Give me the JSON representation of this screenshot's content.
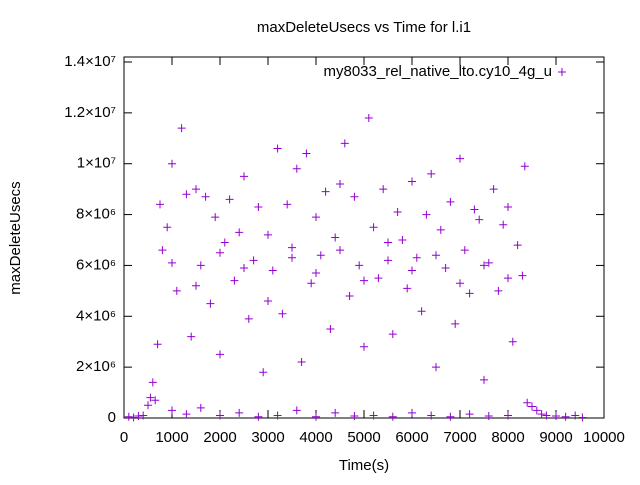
{
  "chart_data": {
    "type": "scatter",
    "title": "maxDeleteUsecs vs Time for l.i1",
    "xlabel": "Time(s)",
    "ylabel": "maxDeleteUsecs",
    "xlim": [
      0,
      10000
    ],
    "xticks": [
      0,
      1000,
      2000,
      3000,
      4000,
      5000,
      6000,
      7000,
      8000,
      9000,
      10000
    ],
    "ylim": [
      0,
      14000000
    ],
    "yticks": [
      0,
      {
        "value": 2000000,
        "label": "2×10⁶"
      },
      {
        "value": 4000000,
        "label": "4×10⁶"
      },
      {
        "value": 6000000,
        "label": "6×10⁶"
      },
      {
        "value": 8000000,
        "label": "8×10⁶"
      },
      {
        "value": 10000000,
        "label": "1×10⁷"
      },
      {
        "value": 12000000,
        "label": "1.2×10⁷"
      },
      {
        "value": 14000000,
        "label": "1.4×10⁷"
      }
    ],
    "grid": false,
    "legend": "top-right",
    "series": [
      {
        "name": "my8033_rel_native_lto.cy10_4g_u",
        "color": "#9400d3",
        "x": [
          100,
          300,
          500,
          550,
          600,
          650,
          700,
          750,
          800,
          900,
          1000,
          1100,
          1200,
          1300,
          1400,
          1500,
          1600,
          1700,
          1800,
          1900,
          2000,
          2100,
          2200,
          2300,
          2400,
          2500,
          2600,
          2700,
          2800,
          2900,
          3000,
          3100,
          3200,
          3300,
          3400,
          3500,
          3600,
          3700,
          3800,
          3900,
          4000,
          4100,
          4200,
          4300,
          4400,
          4500,
          4600,
          4700,
          4800,
          4900,
          5000,
          5100,
          5200,
          5300,
          5400,
          5500,
          5600,
          5700,
          5800,
          5900,
          6000,
          6100,
          6200,
          6300,
          6400,
          6500,
          6600,
          6700,
          6800,
          6900,
          7000,
          7100,
          7200,
          7300,
          7400,
          7500,
          7600,
          7700,
          7800,
          7900,
          8000,
          8100,
          8200,
          8300,
          8350,
          8400,
          8500,
          8600,
          8700,
          8800,
          9000,
          9200,
          9400,
          9550,
          200,
          400,
          1000,
          1300,
          1600,
          2000,
          2400,
          2800,
          3200,
          3600,
          4000,
          4400,
          4800,
          5200,
          5600,
          6000,
          6400,
          6800,
          7200,
          7600,
          8000,
          1000,
          1500,
          2000,
          2500,
          3000,
          3500,
          4000,
          4500,
          5000,
          5500,
          6000,
          6500,
          7000,
          7500,
          8000
        ],
        "values": [
          50000,
          80000,
          500000,
          800000,
          1400000,
          700000,
          2900000,
          8400000,
          6600000,
          7500000,
          10000000,
          5000000,
          11400000,
          8800000,
          3200000,
          9000000,
          6000000,
          8700000,
          4500000,
          7900000,
          2500000,
          6900000,
          8600000,
          5400000,
          7300000,
          9500000,
          3900000,
          6200000,
          8300000,
          1800000,
          7200000,
          5800000,
          10600000,
          4100000,
          8400000,
          6700000,
          9800000,
          2200000,
          10400000,
          5300000,
          7900000,
          6400000,
          8900000,
          3500000,
          7100000,
          9200000,
          10800000,
          4800000,
          8700000,
          6000000,
          2800000,
          11800000,
          7500000,
          5500000,
          9000000,
          6900000,
          3300000,
          8100000,
          7000000,
          5100000,
          9300000,
          6300000,
          4200000,
          8000000,
          9600000,
          2000000,
          7400000,
          5900000,
          8500000,
          3700000,
          10200000,
          6600000,
          4900000,
          8200000,
          7800000,
          1500000,
          6100000,
          9000000,
          5000000,
          7600000,
          8300000,
          3000000,
          6800000,
          5600000,
          9900000,
          600000,
          450000,
          300000,
          150000,
          100000,
          80000,
          50000,
          100000,
          20000,
          20000,
          100000,
          300000,
          150000,
          400000,
          100000,
          200000,
          50000,
          100000,
          300000,
          50000,
          200000,
          80000,
          100000,
          50000,
          200000,
          100000,
          50000,
          150000,
          80000,
          100000,
          6100000,
          5200000,
          6500000,
          5900000,
          4600000,
          6300000,
          5700000,
          6600000,
          5400000,
          6200000,
          5800000,
          6400000,
          5300000,
          6000000,
          5500000
        ]
      }
    ]
  }
}
